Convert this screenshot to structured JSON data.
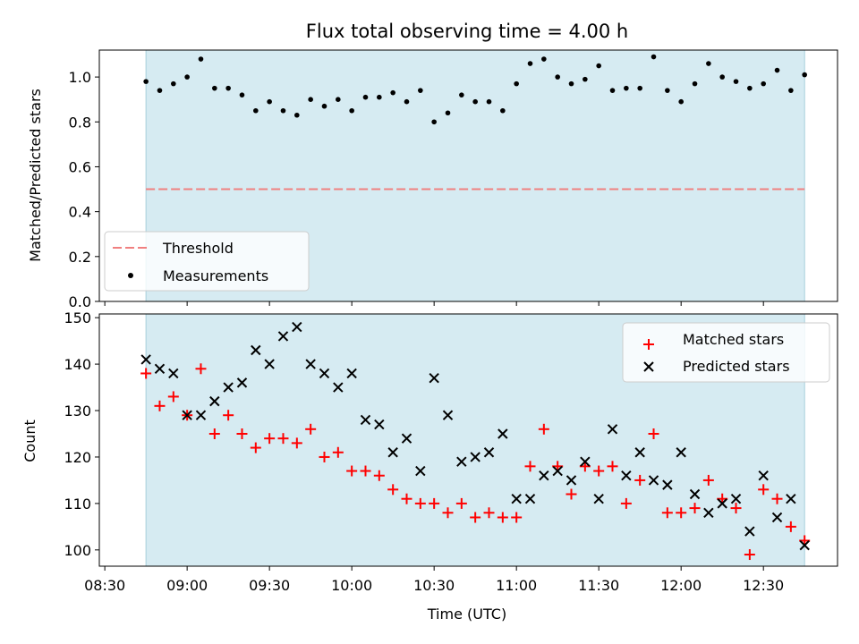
{
  "chart_data": [
    {
      "type": "scatter",
      "title": "Flux total observing time = 4.00 h",
      "ylabel": "Matched/Predicted stars",
      "ylim": [
        0.0,
        1.12
      ],
      "yticks": [
        0.0,
        0.2,
        0.4,
        0.6,
        0.8,
        1.0
      ],
      "ytick_labels": [
        "0.0",
        "0.2",
        "0.4",
        "0.6",
        "0.8",
        "1.0"
      ],
      "observing_window": [
        "08:45",
        "12:45"
      ],
      "threshold": 0.5,
      "legend_position": "lower-left",
      "series": [
        {
          "name": "Threshold",
          "kind": "line",
          "style": "dashed",
          "color": "#f08080",
          "y": 0.5
        },
        {
          "name": "Measurements",
          "kind": "scatter",
          "marker": "dot",
          "color": "#000000",
          "x": [
            "08:45",
            "08:50",
            "08:55",
            "09:00",
            "09:05",
            "09:10",
            "09:15",
            "09:20",
            "09:25",
            "09:30",
            "09:35",
            "09:40",
            "09:45",
            "09:50",
            "09:55",
            "10:00",
            "10:05",
            "10:10",
            "10:15",
            "10:20",
            "10:25",
            "10:30",
            "10:35",
            "10:40",
            "10:45",
            "10:50",
            "10:55",
            "11:00",
            "11:05",
            "11:10",
            "11:15",
            "11:20",
            "11:25",
            "11:30",
            "11:35",
            "11:40",
            "11:45",
            "11:50",
            "11:55",
            "12:00",
            "12:05",
            "12:10",
            "12:15",
            "12:20",
            "12:25",
            "12:30",
            "12:35",
            "12:40",
            "12:45"
          ],
          "y": [
            0.98,
            0.94,
            0.97,
            1.0,
            1.08,
            0.95,
            0.95,
            0.92,
            0.85,
            0.89,
            0.85,
            0.83,
            0.9,
            0.87,
            0.9,
            0.85,
            0.91,
            0.91,
            0.93,
            0.89,
            0.94,
            0.8,
            0.84,
            0.92,
            0.89,
            0.89,
            0.85,
            0.97,
            1.06,
            1.08,
            1.0,
            0.97,
            0.99,
            1.05,
            0.94,
            0.95,
            0.95,
            1.09,
            0.94,
            0.89,
            0.97,
            1.06,
            1.0,
            0.98,
            0.95,
            0.97,
            1.03,
            0.94,
            1.01
          ]
        }
      ]
    },
    {
      "type": "scatter",
      "xlabel": "Time (UTC)",
      "ylabel": "Count",
      "ylim": [
        96.5,
        150.8
      ],
      "yticks": [
        100,
        110,
        120,
        130,
        140,
        150
      ],
      "ytick_labels": [
        "100",
        "110",
        "120",
        "130",
        "140",
        "150"
      ],
      "xlim": [
        "08:28",
        "12:57"
      ],
      "xticks": [
        "08:30",
        "09:00",
        "09:30",
        "10:00",
        "10:30",
        "11:00",
        "11:30",
        "12:00",
        "12:30"
      ],
      "observing_window": [
        "08:45",
        "12:45"
      ],
      "legend_position": "upper-right",
      "series": [
        {
          "name": "Matched stars",
          "marker": "plus",
          "color": "#ff0000",
          "x": [
            "08:45",
            "08:50",
            "08:55",
            "09:00",
            "09:05",
            "09:10",
            "09:15",
            "09:20",
            "09:25",
            "09:30",
            "09:35",
            "09:40",
            "09:45",
            "09:50",
            "09:55",
            "10:00",
            "10:05",
            "10:10",
            "10:15",
            "10:20",
            "10:25",
            "10:30",
            "10:35",
            "10:40",
            "10:45",
            "10:50",
            "10:55",
            "11:00",
            "11:05",
            "11:10",
            "11:15",
            "11:20",
            "11:25",
            "11:30",
            "11:35",
            "11:40",
            "11:45",
            "11:50",
            "11:55",
            "12:00",
            "12:05",
            "12:10",
            "12:15",
            "12:20",
            "12:25",
            "12:30",
            "12:35",
            "12:40",
            "12:45"
          ],
          "y": [
            138,
            131,
            133,
            129,
            139,
            125,
            129,
            125,
            122,
            124,
            124,
            123,
            126,
            120,
            121,
            117,
            117,
            116,
            113,
            111,
            110,
            110,
            108,
            110,
            107,
            108,
            107,
            107,
            118,
            126,
            118,
            112,
            118,
            117,
            118,
            110,
            115,
            125,
            108,
            108,
            109,
            115,
            111,
            109,
            99,
            113,
            111,
            105,
            102
          ]
        },
        {
          "name": "Predicted stars",
          "marker": "x",
          "color": "#000000",
          "x": [
            "08:45",
            "08:50",
            "08:55",
            "09:00",
            "09:05",
            "09:10",
            "09:15",
            "09:20",
            "09:25",
            "09:30",
            "09:35",
            "09:40",
            "09:45",
            "09:50",
            "09:55",
            "10:00",
            "10:05",
            "10:10",
            "10:15",
            "10:20",
            "10:25",
            "10:30",
            "10:35",
            "10:40",
            "10:45",
            "10:50",
            "10:55",
            "11:00",
            "11:05",
            "11:10",
            "11:15",
            "11:20",
            "11:25",
            "11:30",
            "11:35",
            "11:40",
            "11:45",
            "11:50",
            "11:55",
            "12:00",
            "12:05",
            "12:10",
            "12:15",
            "12:20",
            "12:25",
            "12:30",
            "12:35",
            "12:40",
            "12:45"
          ],
          "y": [
            141,
            139,
            138,
            129,
            129,
            132,
            135,
            136,
            143,
            140,
            146,
            148,
            140,
            138,
            135,
            138,
            128,
            127,
            121,
            124,
            117,
            137,
            129,
            119,
            120,
            121,
            125,
            111,
            111,
            116,
            117,
            115,
            119,
            111,
            126,
            116,
            121,
            115,
            114,
            121,
            112,
            108,
            110,
            111,
            104,
            116,
            107,
            111,
            101
          ]
        }
      ]
    }
  ]
}
